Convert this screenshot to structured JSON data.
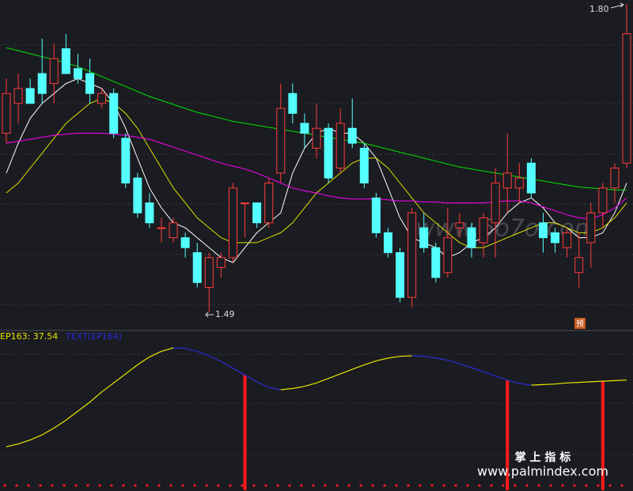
{
  "chart_data": [
    {
      "type": "candlestick",
      "open": [
        1.67,
        1.7,
        1.715,
        1.73,
        1.72,
        1.755,
        1.735,
        1.73,
        1.7,
        1.71,
        1.665,
        1.625,
        1.6,
        1.575,
        1.565,
        1.565,
        1.55,
        1.515,
        1.535,
        1.545,
        1.6,
        1.6,
        1.58,
        1.63,
        1.71,
        1.68,
        1.655,
        1.675,
        1.635,
        1.675,
        1.655,
        1.605,
        1.57,
        1.55,
        1.505,
        1.575,
        1.555,
        1.53,
        1.575,
        1.575,
        1.56,
        1.58,
        1.615,
        1.615,
        1.64,
        1.58,
        1.57,
        1.555,
        1.53,
        1.56,
        1.59,
        1.615,
        1.64
      ],
      "high": [
        1.725,
        1.73,
        1.725,
        1.765,
        1.76,
        1.77,
        1.75,
        1.745,
        1.715,
        1.715,
        1.67,
        1.63,
        1.61,
        1.585,
        1.585,
        1.57,
        1.56,
        1.55,
        1.55,
        1.62,
        1.6,
        1.6,
        1.625,
        1.72,
        1.72,
        1.69,
        1.7,
        1.68,
        1.695,
        1.705,
        1.66,
        1.61,
        1.575,
        1.555,
        1.595,
        1.59,
        1.56,
        1.595,
        1.59,
        1.58,
        1.59,
        1.635,
        1.67,
        1.64,
        1.645,
        1.59,
        1.575,
        1.575,
        1.57,
        1.6,
        1.62,
        1.64,
        1.8
      ],
      "low": [
        1.66,
        1.68,
        1.7,
        1.7,
        1.7,
        1.73,
        1.72,
        1.7,
        1.695,
        1.665,
        1.615,
        1.585,
        1.575,
        1.56,
        1.56,
        1.545,
        1.515,
        1.49,
        1.525,
        1.54,
        1.565,
        1.575,
        1.575,
        1.62,
        1.68,
        1.655,
        1.645,
        1.62,
        1.63,
        1.655,
        1.615,
        1.565,
        1.545,
        1.5,
        1.495,
        1.55,
        1.52,
        1.525,
        1.565,
        1.545,
        1.545,
        1.545,
        1.59,
        1.6,
        1.605,
        1.55,
        1.55,
        1.545,
        1.515,
        1.535,
        1.575,
        1.6,
        1.635
      ],
      "close": [
        1.71,
        1.715,
        1.7,
        1.71,
        1.745,
        1.73,
        1.725,
        1.71,
        1.71,
        1.67,
        1.62,
        1.59,
        1.58,
        1.575,
        1.58,
        1.555,
        1.52,
        1.545,
        1.545,
        1.615,
        1.6,
        1.58,
        1.62,
        1.695,
        1.69,
        1.67,
        1.675,
        1.625,
        1.68,
        1.66,
        1.62,
        1.57,
        1.55,
        1.505,
        1.59,
        1.555,
        1.525,
        1.565,
        1.58,
        1.555,
        1.585,
        1.62,
        1.63,
        1.625,
        1.61,
        1.565,
        1.56,
        1.57,
        1.545,
        1.59,
        1.615,
        1.635,
        1.77
      ],
      "up_color": "#ff3b3b",
      "down_color": "#54ffff",
      "ylim": [
        1.49,
        1.8
      ],
      "series": [
        {
          "color": "#ffffff",
          "values": [
            1.63,
            1.66,
            1.685,
            1.7,
            1.71,
            1.72,
            1.725,
            1.72,
            1.715,
            1.7,
            1.675,
            1.645,
            1.615,
            1.595,
            1.58,
            1.575,
            1.565,
            1.555,
            1.545,
            1.54,
            1.555,
            1.57,
            1.58,
            1.59,
            1.63,
            1.655,
            1.67,
            1.675,
            1.67,
            1.67,
            1.66,
            1.645,
            1.615,
            1.585,
            1.565,
            1.56,
            1.555,
            1.545,
            1.55,
            1.56,
            1.565,
            1.575,
            1.59,
            1.6,
            1.605,
            1.595,
            1.58,
            1.575,
            1.565,
            1.565,
            1.57,
            1.59,
            1.62
          ]
        },
        {
          "color": "#e0e000",
          "values": [
            1.61,
            1.62,
            1.635,
            1.65,
            1.665,
            1.68,
            1.69,
            1.7,
            1.705,
            1.7,
            1.69,
            1.675,
            1.655,
            1.635,
            1.615,
            1.6,
            1.585,
            1.575,
            1.565,
            1.56,
            1.56,
            1.56,
            1.565,
            1.57,
            1.58,
            1.595,
            1.61,
            1.62,
            1.63,
            1.64,
            1.645,
            1.645,
            1.635,
            1.62,
            1.605,
            1.59,
            1.58,
            1.57,
            1.56,
            1.555,
            1.555,
            1.56,
            1.565,
            1.57,
            1.575,
            1.58,
            1.58,
            1.575,
            1.57,
            1.57,
            1.575,
            1.585,
            1.6
          ]
        },
        {
          "color": "#ff00ff",
          "values": [
            1.66,
            1.662,
            1.664,
            1.666,
            1.668,
            1.669,
            1.67,
            1.67,
            1.67,
            1.669,
            1.668,
            1.666,
            1.664,
            1.66,
            1.656,
            1.652,
            1.648,
            1.644,
            1.64,
            1.637,
            1.634,
            1.63,
            1.625,
            1.62,
            1.615,
            1.612,
            1.61,
            1.607,
            1.605,
            1.604,
            1.604,
            1.604,
            1.603,
            1.602,
            1.602,
            1.601,
            1.601,
            1.6,
            1.6,
            1.6,
            1.6,
            1.601,
            1.602,
            1.602,
            1.6,
            1.596,
            1.592,
            1.588,
            1.585,
            1.584,
            1.588,
            1.595,
            1.605
          ]
        },
        {
          "color": "#00e600",
          "values": [
            1.756,
            1.753,
            1.75,
            1.747,
            1.744,
            1.741,
            1.737,
            1.732,
            1.727,
            1.722,
            1.717,
            1.712,
            1.707,
            1.703,
            1.699,
            1.695,
            1.691,
            1.688,
            1.685,
            1.682,
            1.68,
            1.678,
            1.676,
            1.674,
            1.672,
            1.67,
            1.668,
            1.666,
            1.664,
            1.662,
            1.66,
            1.657,
            1.654,
            1.651,
            1.648,
            1.645,
            1.642,
            1.639,
            1.636,
            1.634,
            1.632,
            1.63,
            1.628,
            1.626,
            1.624,
            1.622,
            1.62,
            1.618,
            1.616,
            1.615,
            1.614,
            1.613,
            1.613
          ]
        }
      ],
      "max_label": "1.80",
      "min_label": "1.49",
      "watermark": "www.6o7o.com",
      "tag": "预"
    },
    {
      "type": "line",
      "label": "EP163: 37.54",
      "sublabel": "TEXT(EP164)",
      "values": [
        -21.5,
        -19,
        -15.5,
        -11,
        -5,
        2,
        10,
        18,
        27,
        35,
        43,
        51,
        58,
        63,
        66,
        65.5,
        63,
        59,
        54,
        48,
        42,
        36,
        31,
        29,
        30,
        32,
        35,
        39,
        43,
        47,
        51,
        54.5,
        57,
        58.5,
        59,
        58.5,
        57,
        55,
        52,
        48.5,
        45,
        41,
        37.5,
        34.5,
        33,
        33.5,
        34,
        35,
        35.5,
        36,
        36.5,
        37,
        37.54
      ],
      "ylim": [
        -60,
        80
      ],
      "rise_color": "#e6e600",
      "fall_color": "#2a2ad8",
      "signal_color": "#ff1a1a",
      "signal": [
        false,
        false,
        false,
        false,
        false,
        false,
        false,
        false,
        false,
        false,
        false,
        false,
        false,
        false,
        false,
        false,
        false,
        false,
        false,
        false,
        true,
        false,
        false,
        false,
        false,
        false,
        false,
        false,
        false,
        false,
        false,
        false,
        false,
        false,
        false,
        false,
        false,
        false,
        false,
        false,
        false,
        false,
        true,
        false,
        false,
        false,
        false,
        false,
        false,
        false,
        true,
        false,
        false
      ],
      "brand": "掌 上 指 标",
      "site": "www.palmindex.com"
    }
  ]
}
